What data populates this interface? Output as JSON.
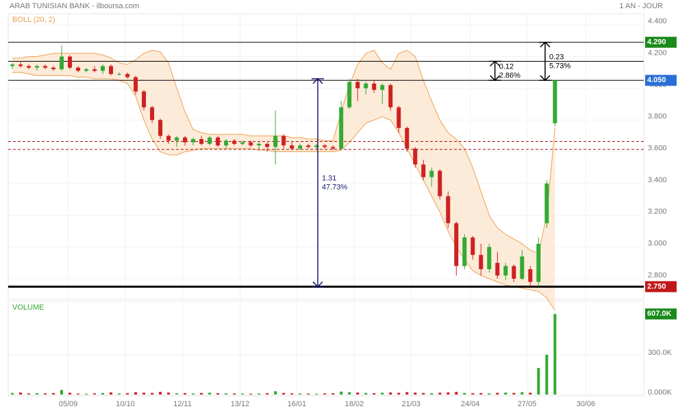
{
  "chart_data": {
    "type": "candlestick",
    "title": "ARAB TUNISIAN BANK - ilboursa.com",
    "period": "1 AN - JOUR",
    "indicator": "BOLL (20, 2)",
    "volume_title": "VOLUME",
    "up_color": "#33aa33",
    "down_color": "#cc2222",
    "band_color": "#f0a050",
    "xlim": [
      -0.5,
      76.8
    ],
    "xticks": [
      {
        "value": 6.8,
        "label": "05/09"
      },
      {
        "value": 13.75,
        "label": "10/10"
      },
      {
        "value": 20.7,
        "label": "12/11"
      },
      {
        "value": 27.7,
        "label": "13/12"
      },
      {
        "value": 34.6,
        "label": "16/01"
      },
      {
        "value": 41.6,
        "label": "18/02"
      },
      {
        "value": 48.5,
        "label": "21/03"
      },
      {
        "value": 55.7,
        "label": "24/04"
      },
      {
        "value": 62.6,
        "label": "27/05"
      },
      {
        "value": 69.75,
        "label": "30/06"
      }
    ],
    "ylim": [
      2.67,
      4.47
    ],
    "yticks": [
      {
        "value": 4.4,
        "label": "4.400"
      },
      {
        "value": 4.2,
        "label": "4.200"
      },
      {
        "value": 4.0,
        "label": "4.000"
      },
      {
        "value": 3.8,
        "label": "3.800"
      },
      {
        "value": 3.6,
        "label": "3.600"
      },
      {
        "value": 3.4,
        "label": "3.400"
      },
      {
        "value": 3.2,
        "label": "3.200"
      },
      {
        "value": 3.0,
        "label": "3.000"
      },
      {
        "value": 2.8,
        "label": "2.800"
      }
    ],
    "vlim": [
      0,
      650000
    ],
    "vticks": [
      {
        "value": 300000,
        "label": "300.0K"
      },
      {
        "value": 0,
        "label": "0.000K"
      }
    ],
    "grid": true,
    "open": [
      4.14,
      4.15,
      4.14,
      4.13,
      4.14,
      4.13,
      4.12,
      4.2,
      4.13,
      4.11,
      4.12,
      4.11,
      4.14,
      4.09,
      4.09,
      4.07,
      3.98,
      3.88,
      3.8,
      3.7,
      3.67,
      3.69,
      3.66,
      3.68,
      3.65,
      3.69,
      3.64,
      3.67,
      3.65,
      3.66,
      3.64,
      3.65,
      3.63,
      3.7,
      3.64,
      3.62,
      3.64,
      3.63,
      3.64,
      3.63,
      3.62,
      3.88,
      4.04,
      4.0,
      4.03,
      3.99,
      4.02,
      3.88,
      3.75,
      3.62,
      3.52,
      3.44,
      3.48,
      3.32,
      3.15,
      2.88,
      3.06,
      2.95,
      2.86,
      2.9,
      2.82,
      2.88,
      2.8,
      2.86,
      2.78,
      3.15,
      3.78
    ],
    "high": [
      4.16,
      4.17,
      4.15,
      4.15,
      4.15,
      4.14,
      4.27,
      4.21,
      4.14,
      4.13,
      4.14,
      4.15,
      4.15,
      4.1,
      4.1,
      4.08,
      3.99,
      3.89,
      3.81,
      3.71,
      3.7,
      3.7,
      3.69,
      3.7,
      3.7,
      3.7,
      3.68,
      3.68,
      3.67,
      3.67,
      3.66,
      3.66,
      3.86,
      3.71,
      3.66,
      3.65,
      3.65,
      3.65,
      3.65,
      3.64,
      3.92,
      4.06,
      4.06,
      4.04,
      4.05,
      4.03,
      4.03,
      3.89,
      3.76,
      3.63,
      3.55,
      3.5,
      3.49,
      3.35,
      3.16,
      3.08,
      3.07,
      3.02,
      3.02,
      2.97,
      2.9,
      2.89,
      2.98,
      2.88,
      3.06,
      3.42,
      4.05
    ],
    "low": [
      4.12,
      4.13,
      4.12,
      4.11,
      4.12,
      4.11,
      4.11,
      4.12,
      4.1,
      4.1,
      4.1,
      4.09,
      4.08,
      4.08,
      4.06,
      3.96,
      3.86,
      3.78,
      3.68,
      3.65,
      3.63,
      3.64,
      3.64,
      3.64,
      3.64,
      3.63,
      3.62,
      3.64,
      3.64,
      3.63,
      3.62,
      3.6,
      3.52,
      3.62,
      3.61,
      3.61,
      3.62,
      3.62,
      3.62,
      3.61,
      3.61,
      3.87,
      3.92,
      3.96,
      3.97,
      3.9,
      3.86,
      3.72,
      3.6,
      3.5,
      3.42,
      3.38,
      3.3,
      3.12,
      2.82,
      2.86,
      2.92,
      2.82,
      2.84,
      2.8,
      2.79,
      2.78,
      2.79,
      2.75,
      2.75,
      3.12,
      3.76
    ],
    "close": [
      4.15,
      4.14,
      4.13,
      4.14,
      4.13,
      4.12,
      4.2,
      4.13,
      4.11,
      4.12,
      4.11,
      4.14,
      4.09,
      4.09,
      4.07,
      3.98,
      3.88,
      3.8,
      3.7,
      3.67,
      3.69,
      3.66,
      3.68,
      3.65,
      3.69,
      3.64,
      3.67,
      3.65,
      3.66,
      3.64,
      3.65,
      3.63,
      3.7,
      3.64,
      3.62,
      3.64,
      3.63,
      3.64,
      3.63,
      3.62,
      3.88,
      4.04,
      4.0,
      4.03,
      3.99,
      4.02,
      3.88,
      3.75,
      3.62,
      3.52,
      3.44,
      3.48,
      3.32,
      3.15,
      2.88,
      3.06,
      2.95,
      2.86,
      3.0,
      2.82,
      2.88,
      2.8,
      2.94,
      2.78,
      3.02,
      3.4,
      4.05
    ],
    "volume": [
      12000,
      15000,
      8000,
      10000,
      9000,
      11000,
      35000,
      14000,
      7000,
      6000,
      9000,
      12000,
      16000,
      8000,
      10000,
      18000,
      14000,
      12000,
      20000,
      15000,
      9000,
      11000,
      8000,
      12000,
      14000,
      10000,
      9000,
      8000,
      7000,
      6000,
      8000,
      10000,
      25000,
      12000,
      9000,
      8000,
      7000,
      6000,
      9000,
      10000,
      22000,
      18000,
      15000,
      12000,
      10000,
      14000,
      16000,
      13000,
      18000,
      15000,
      12000,
      10000,
      14000,
      16000,
      20000,
      12000,
      10000,
      11000,
      9000,
      13000,
      15000,
      12000,
      18000,
      14000,
      200000,
      300000,
      607000
    ],
    "band_upper": [
      4.19,
      4.19,
      4.2,
      4.2,
      4.21,
      4.22,
      4.22,
      4.22,
      4.22,
      4.22,
      4.22,
      4.21,
      4.19,
      4.16,
      4.15,
      4.18,
      4.22,
      4.24,
      4.23,
      4.16,
      4.0,
      3.85,
      3.74,
      3.72,
      3.71,
      3.71,
      3.71,
      3.71,
      3.71,
      3.7,
      3.7,
      3.7,
      3.7,
      3.7,
      3.69,
      3.69,
      3.68,
      3.68,
      3.67,
      3.67,
      3.85,
      4.02,
      4.15,
      4.22,
      4.24,
      4.16,
      4.12,
      4.22,
      4.24,
      4.2,
      4.05,
      3.92,
      3.8,
      3.72,
      3.68,
      3.62,
      3.5,
      3.35,
      3.2,
      3.12,
      3.08,
      3.05,
      3.02,
      2.98,
      2.96,
      3.2,
      3.75
    ],
    "band_lower": [
      4.1,
      4.1,
      4.09,
      4.08,
      4.08,
      4.08,
      4.08,
      4.08,
      4.07,
      4.07,
      4.06,
      4.06,
      4.06,
      4.05,
      4.03,
      3.95,
      3.8,
      3.68,
      3.6,
      3.58,
      3.58,
      3.6,
      3.61,
      3.62,
      3.62,
      3.62,
      3.62,
      3.62,
      3.62,
      3.62,
      3.61,
      3.61,
      3.6,
      3.6,
      3.6,
      3.6,
      3.6,
      3.6,
      3.6,
      3.6,
      3.61,
      3.66,
      3.72,
      3.78,
      3.8,
      3.82,
      3.8,
      3.72,
      3.62,
      3.52,
      3.42,
      3.32,
      3.22,
      3.1,
      3.0,
      2.92,
      2.85,
      2.82,
      2.8,
      2.78,
      2.76,
      2.75,
      2.74,
      2.73,
      2.72,
      2.68,
      2.6
    ],
    "levels": [
      {
        "value": 4.29,
        "label": "4.290",
        "color": "#1a8a1a",
        "style": "solid"
      },
      {
        "value": 4.17,
        "style": "solid"
      },
      {
        "value": 4.05,
        "label": "4.050",
        "color": "#2a6fd6",
        "style": "solid"
      },
      {
        "value": 3.665,
        "style": "dashed"
      },
      {
        "value": 3.615,
        "style": "dashed"
      },
      {
        "value": 2.75,
        "label": "2.750",
        "color": "#c01818",
        "style": "thick"
      }
    ],
    "volume_tag": {
      "value": 607000,
      "label": "607.0K",
      "color": "#1a8a1a"
    },
    "measures": [
      {
        "at": 37.15,
        "from": 2.75,
        "to": 4.06,
        "diff": 1.31,
        "pct": "47.73%",
        "color": "#1a1a70"
      },
      {
        "at": 58.7,
        "from": 4.05,
        "to": 4.17,
        "diff": 0.12,
        "pct": "2.86%",
        "color": "#000000"
      },
      {
        "at": 64.8,
        "from": 4.05,
        "to": 4.29,
        "diff": 0.23,
        "pct": "5.73%",
        "color": "#000000"
      }
    ]
  }
}
